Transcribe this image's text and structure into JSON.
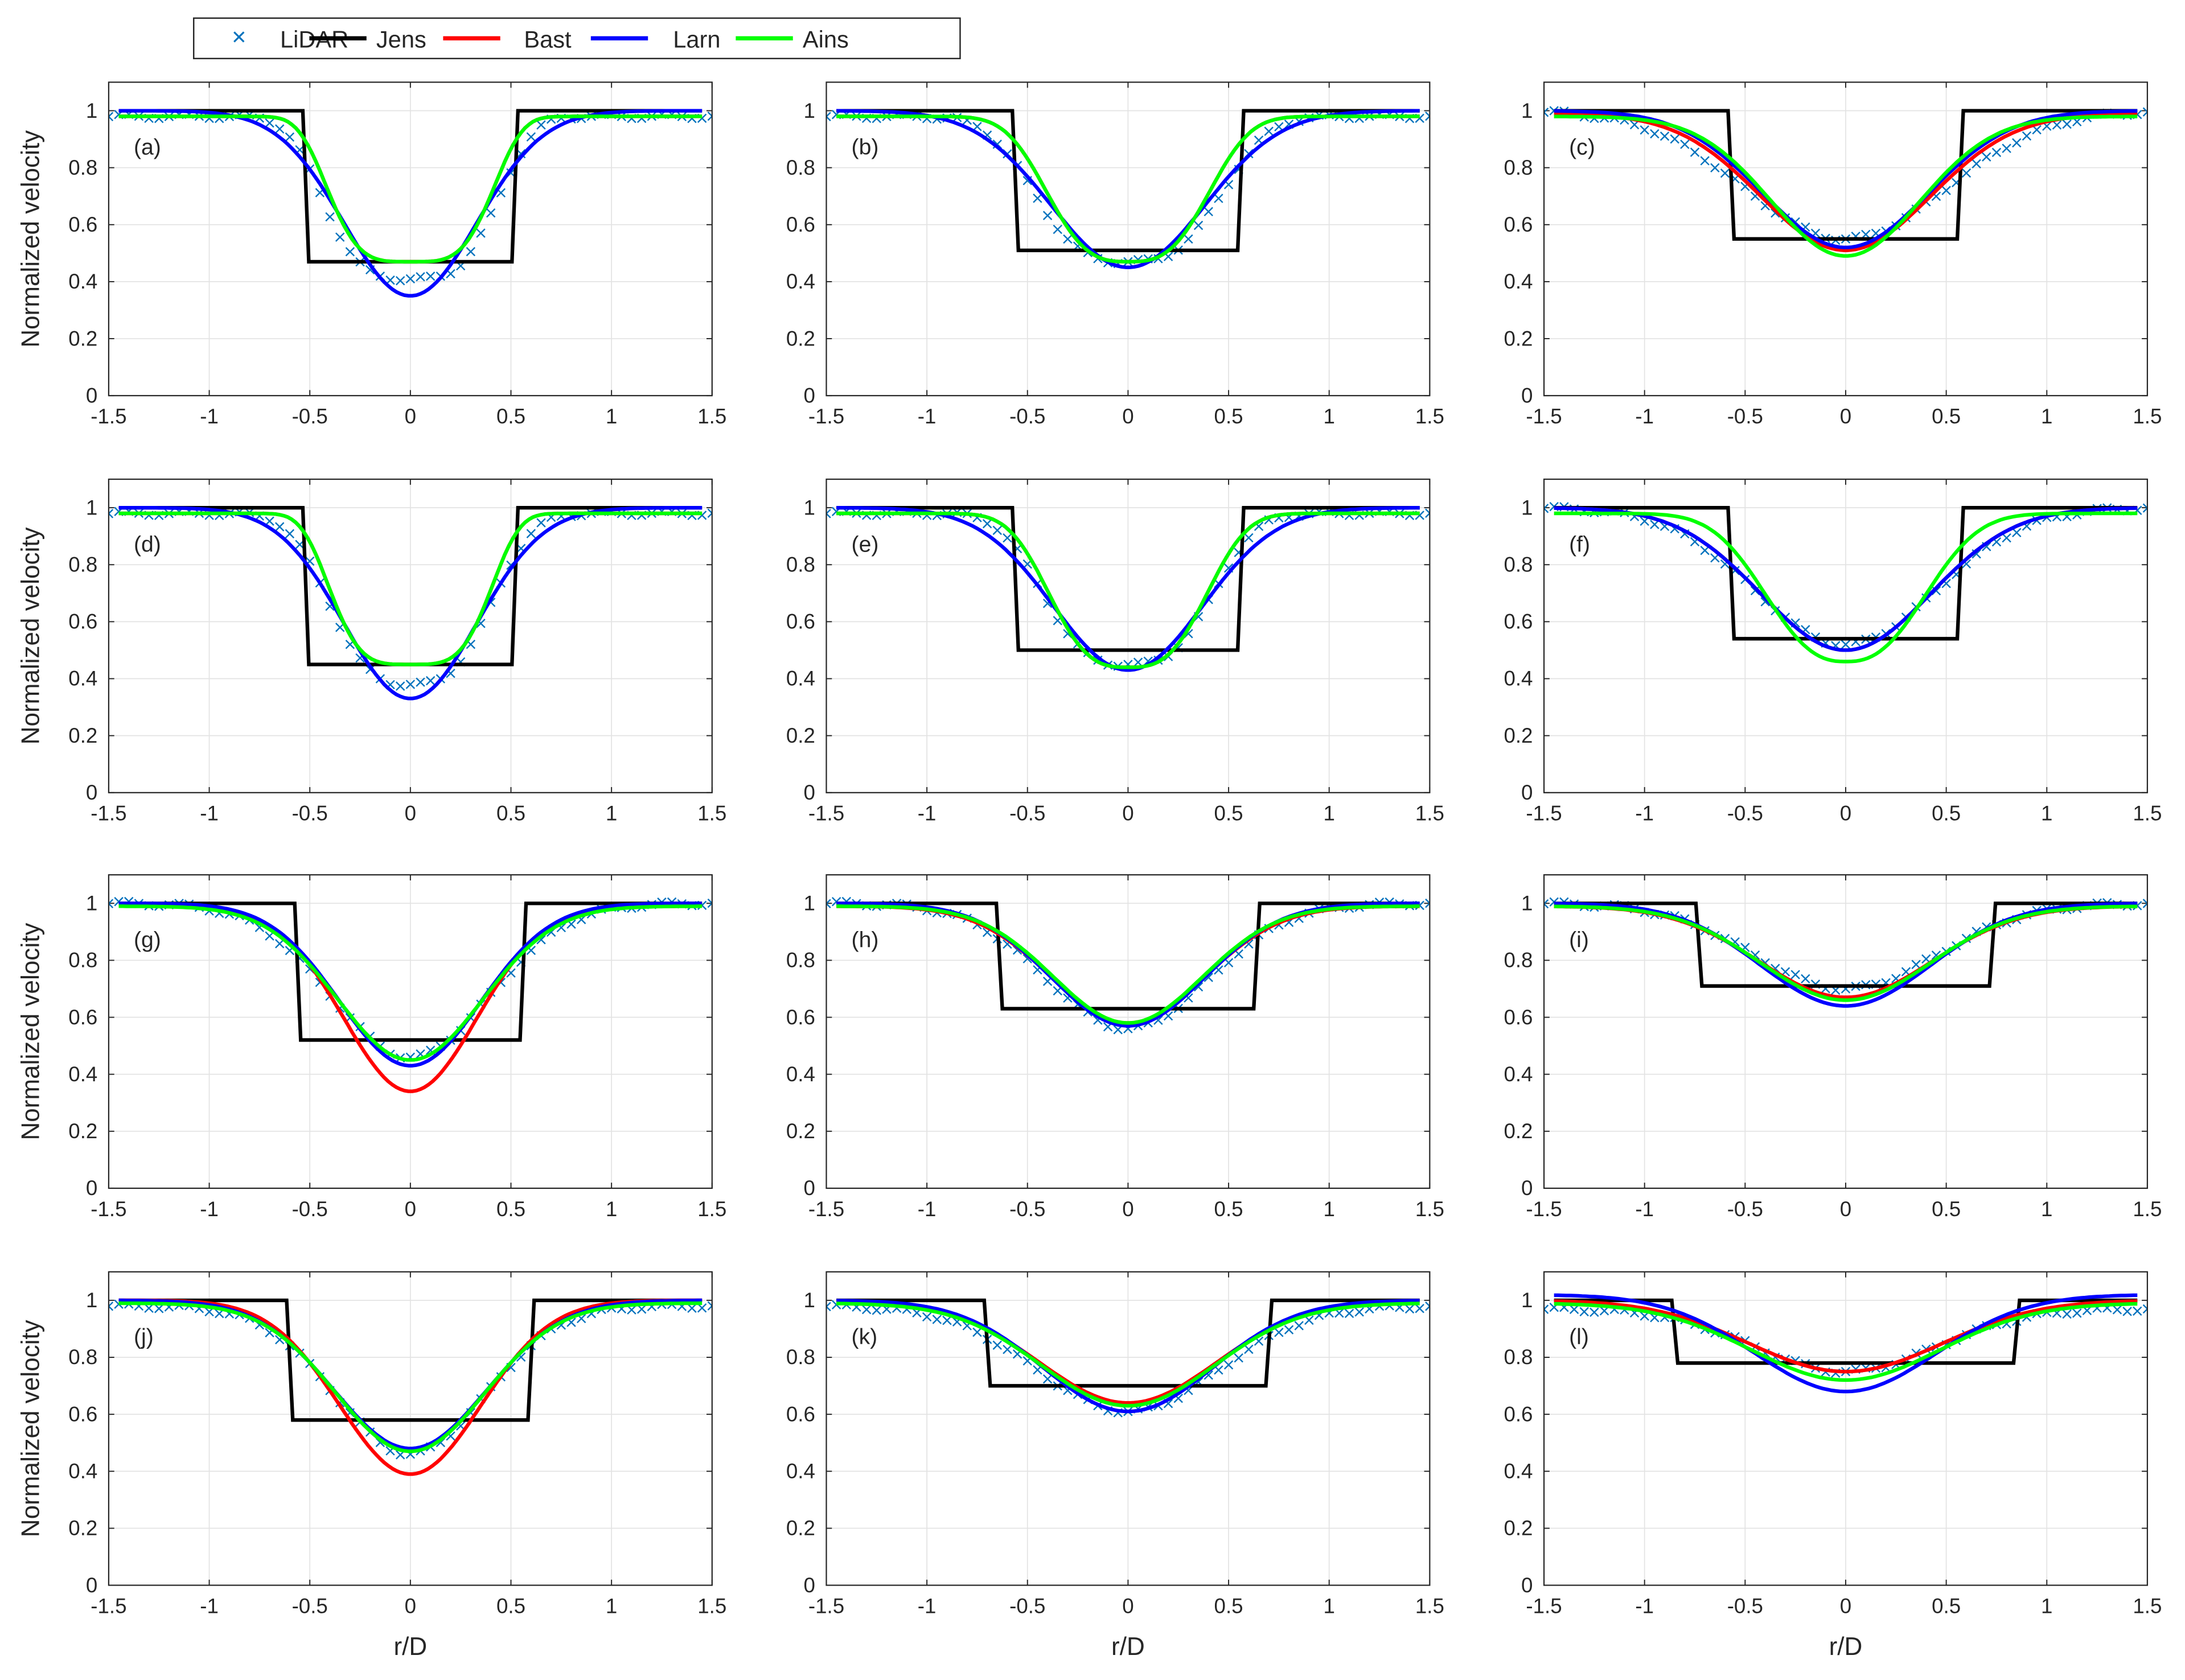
{
  "chart_data": {
    "type": "line",
    "layout": "4x3 grid of subplots",
    "legend": {
      "placement": "top",
      "entries": [
        {
          "name": "LiDAR",
          "style": "marker-x",
          "color": "#0072BD"
        },
        {
          "name": "Jens",
          "style": "line",
          "color": "#000000"
        },
        {
          "name": "Bast",
          "style": "line",
          "color": "#FF0000"
        },
        {
          "name": "Larn",
          "style": "line",
          "color": "#0000FF"
        },
        {
          "name": "Ains",
          "style": "line",
          "color": "#00FF00"
        }
      ]
    },
    "xlabel": "r/D",
    "ylabel": "Normalized velocity",
    "xlim": [
      -1.5,
      1.5
    ],
    "ylim": [
      0,
      1.1
    ],
    "xticks": [
      "-1.5",
      "-1",
      "-0.5",
      "0",
      "0.5",
      "1",
      "1.5"
    ],
    "yticks": [
      "0",
      "0.2",
      "0.4",
      "0.6",
      "0.8",
      "1"
    ],
    "grid": true,
    "curve_model": "u(x) = base - (base - min) * exp(-0.5 * (|x|/s)^p); Jens = top-hat with level and half_width",
    "panels": [
      {
        "label": "(a)",
        "Jens": {
          "level": 0.47,
          "half_width": 0.52
        },
        "LiDAR": {
          "min": 0.41,
          "s": 0.4,
          "p": 3.5,
          "base": 0.98
        },
        "Bast": {
          "min": 0.47,
          "s": 0.38,
          "p": 4,
          "base": 0.98
        },
        "Larn": {
          "min": 0.35,
          "s": 0.33,
          "p": 2,
          "base": 1.0
        },
        "Ains": {
          "min": 0.47,
          "s": 0.38,
          "p": 4,
          "base": 0.98
        }
      },
      {
        "label": "(b)",
        "Jens": {
          "level": 0.51,
          "half_width": 0.56
        },
        "LiDAR": {
          "min": 0.47,
          "s": 0.43,
          "p": 3,
          "base": 0.98
        },
        "Bast": {
          "min": 0.47,
          "s": 0.37,
          "p": 3,
          "base": 0.98
        },
        "Larn": {
          "min": 0.45,
          "s": 0.38,
          "p": 2,
          "base": 1.0
        },
        "Ains": {
          "min": 0.47,
          "s": 0.37,
          "p": 3,
          "base": 0.98
        }
      },
      {
        "label": "(c)",
        "Jens": {
          "level": 0.55,
          "half_width": 0.57
        },
        "LiDAR": {
          "min": 0.55,
          "s": 0.5,
          "p": 2,
          "base": 1.0
        },
        "Bast": {
          "min": 0.51,
          "s": 0.42,
          "p": 2,
          "base": 0.99
        },
        "Larn": {
          "min": 0.52,
          "s": 0.41,
          "p": 2,
          "base": 1.0
        },
        "Ains": {
          "min": 0.49,
          "s": 0.37,
          "p": 2,
          "base": 0.98
        }
      },
      {
        "label": "(d)",
        "Jens": {
          "level": 0.45,
          "half_width": 0.52
        },
        "LiDAR": {
          "min": 0.38,
          "s": 0.37,
          "p": 3,
          "base": 0.98
        },
        "Bast": {
          "min": 0.45,
          "s": 0.37,
          "p": 4,
          "base": 0.98
        },
        "Larn": {
          "min": 0.33,
          "s": 0.33,
          "p": 2,
          "base": 1.0
        },
        "Ains": {
          "min": 0.45,
          "s": 0.37,
          "p": 4,
          "base": 0.98
        }
      },
      {
        "label": "(e)",
        "Jens": {
          "level": 0.5,
          "half_width": 0.56
        },
        "LiDAR": {
          "min": 0.45,
          "s": 0.39,
          "p": 3,
          "base": 0.98
        },
        "Bast": {
          "min": 0.44,
          "s": 0.36,
          "p": 3,
          "base": 0.98
        },
        "Larn": {
          "min": 0.43,
          "s": 0.37,
          "p": 2,
          "base": 1.0
        },
        "Ains": {
          "min": 0.44,
          "s": 0.36,
          "p": 3,
          "base": 0.98
        }
      },
      {
        "label": "(f)",
        "Jens": {
          "level": 0.54,
          "half_width": 0.57
        },
        "LiDAR": {
          "min": 0.52,
          "s": 0.45,
          "p": 2,
          "base": 1.0
        },
        "Bast": {
          "min": 0.5,
          "s": 0.42,
          "p": 2,
          "base": 1.0
        },
        "Larn": {
          "min": 0.5,
          "s": 0.42,
          "p": 2,
          "base": 1.0
        },
        "Ains": {
          "min": 0.46,
          "s": 0.37,
          "p": 2.5,
          "base": 0.98
        }
      },
      {
        "label": "(g)",
        "Jens": {
          "level": 0.52,
          "half_width": 0.56
        },
        "LiDAR": {
          "min": 0.46,
          "s": 0.39,
          "p": 2,
          "base": 1.0
        },
        "Bast": {
          "min": 0.34,
          "s": 0.33,
          "p": 2,
          "base": 0.99
        },
        "Larn": {
          "min": 0.43,
          "s": 0.35,
          "p": 2,
          "base": 1.0
        },
        "Ains": {
          "min": 0.45,
          "s": 0.36,
          "p": 2,
          "base": 0.99
        }
      },
      {
        "label": "(h)",
        "Jens": {
          "level": 0.63,
          "half_width": 0.64
        },
        "LiDAR": {
          "min": 0.56,
          "s": 0.4,
          "p": 2,
          "base": 1.0
        },
        "Bast": {
          "min": 0.58,
          "s": 0.38,
          "p": 2,
          "base": 0.99
        },
        "Larn": {
          "min": 0.57,
          "s": 0.38,
          "p": 2,
          "base": 1.0
        },
        "Ains": {
          "min": 0.58,
          "s": 0.37,
          "p": 2,
          "base": 0.99
        }
      },
      {
        "label": "(i)",
        "Jens": {
          "level": 0.71,
          "half_width": 0.73
        },
        "LiDAR": {
          "min": 0.7,
          "s": 0.45,
          "p": 2,
          "base": 1.0
        },
        "Bast": {
          "min": 0.67,
          "s": 0.43,
          "p": 2,
          "base": 0.99
        },
        "Larn": {
          "min": 0.64,
          "s": 0.42,
          "p": 2,
          "base": 1.0
        },
        "Ains": {
          "min": 0.66,
          "s": 0.42,
          "p": 2,
          "base": 0.99
        }
      },
      {
        "label": "(j)",
        "Jens": {
          "level": 0.58,
          "half_width": 0.6
        },
        "LiDAR": {
          "min": 0.46,
          "s": 0.37,
          "p": 2,
          "base": 0.98
        },
        "Bast": {
          "min": 0.39,
          "s": 0.35,
          "p": 2,
          "base": 1.0
        },
        "Larn": {
          "min": 0.48,
          "s": 0.38,
          "p": 2,
          "base": 1.0
        },
        "Ains": {
          "min": 0.47,
          "s": 0.37,
          "p": 2,
          "base": 0.99
        }
      },
      {
        "label": "(k)",
        "Jens": {
          "level": 0.7,
          "half_width": 0.7
        },
        "LiDAR": {
          "min": 0.61,
          "s": 0.45,
          "p": 2,
          "base": 0.98
        },
        "Bast": {
          "min": 0.64,
          "s": 0.44,
          "p": 2,
          "base": 1.0
        },
        "Larn": {
          "min": 0.61,
          "s": 0.42,
          "p": 2,
          "base": 1.0
        },
        "Ains": {
          "min": 0.63,
          "s": 0.43,
          "p": 2,
          "base": 0.99
        }
      },
      {
        "label": "(l)",
        "Jens": {
          "level": 0.78,
          "half_width": 0.85
        },
        "LiDAR": {
          "min": 0.75,
          "s": 0.45,
          "p": 2,
          "base": 0.97
        },
        "Bast": {
          "min": 0.75,
          "s": 0.48,
          "p": 2,
          "base": 1.0
        },
        "Larn": {
          "min": 0.68,
          "s": 0.45,
          "p": 2,
          "base": 1.02
        },
        "Ains": {
          "min": 0.72,
          "s": 0.47,
          "p": 2,
          "base": 0.99
        }
      }
    ]
  }
}
